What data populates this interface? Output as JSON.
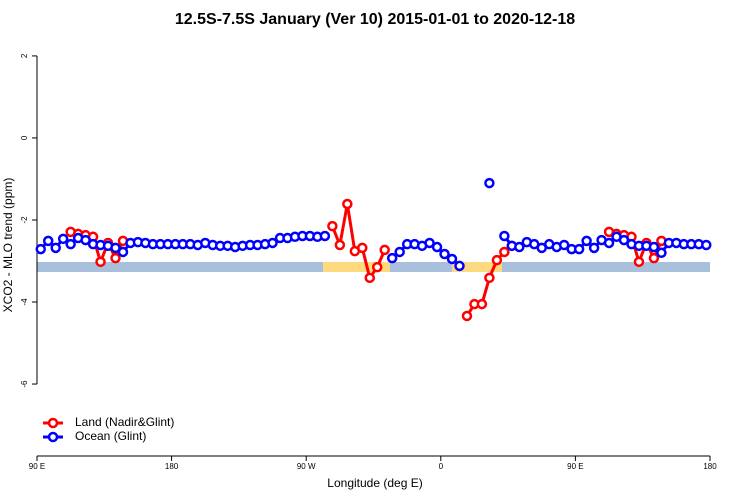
{
  "chart_data": {
    "type": "line",
    "title": "12.5S-7.5S January (Ver 10)   2015-01-01 to 2020-12-18",
    "x_label": "Longitude (deg E)",
    "y_label": "XCO2 - MLO trend (ppm)",
    "xlim": [
      90,
      540
    ],
    "xticks": [
      {
        "value": 90,
        "label": "90 E"
      },
      180,
      {
        "value": 270,
        "label": "90 W"
      },
      {
        "value": 360,
        "label": "0"
      },
      {
        "value": 450,
        "label": "90 E"
      },
      {
        "value": 540,
        "label": "180"
      }
    ],
    "ylim": [
      -7.73,
      2.51
    ],
    "yticks": [
      2,
      0,
      -2,
      -4,
      -6
    ],
    "legend": "bottom-left",
    "x": [
      92.5,
      97.5,
      102.5,
      107.5,
      112.5,
      117.5,
      122.5,
      127.5,
      132.5,
      137.5,
      142.5,
      147.5,
      152.5,
      157.5,
      162.5,
      167.5,
      172.5,
      177.5,
      182.5,
      187.5,
      192.5,
      197.5,
      202.5,
      207.5,
      212.5,
      217.5,
      222.5,
      227.5,
      232.5,
      237.5,
      242.5,
      247.5,
      252.5,
      257.5,
      262.5,
      267.5,
      272.5,
      277.5,
      282.5,
      287.5,
      292.5,
      297.5,
      302.5,
      307.5,
      312.5,
      317.5,
      322.5,
      327.5,
      332.5,
      337.5,
      342.5,
      347.5,
      352.5,
      357.5,
      362.5,
      367.5,
      372.5,
      377.5,
      382.5,
      387.5,
      392.5,
      397.5,
      402.5,
      407.5,
      412.5,
      417.5,
      422.5,
      427.5,
      432.5,
      437.5,
      442.5,
      447.5,
      452.5,
      457.5,
      462.5,
      467.5,
      472.5,
      477.5,
      482.5,
      487.5,
      492.5,
      497.5,
      502.5,
      507.5,
      512.5,
      517.5,
      522.5,
      527.5,
      532.5,
      537.5
    ],
    "series": [
      {
        "name": "Land (Nadir&Glint)",
        "color": "#ff0000",
        "values": [
          null,
          null,
          null,
          null,
          -2.29,
          -2.34,
          -2.37,
          -2.41,
          -3.02,
          -2.56,
          -2.93,
          -2.51,
          null,
          null,
          null,
          null,
          null,
          null,
          null,
          null,
          null,
          null,
          null,
          null,
          null,
          null,
          null,
          null,
          null,
          null,
          null,
          null,
          null,
          null,
          null,
          null,
          null,
          null,
          null,
          -2.15,
          -2.61,
          -1.61,
          -2.76,
          -2.68,
          -3.41,
          -3.15,
          -2.73,
          null,
          null,
          null,
          null,
          null,
          null,
          null,
          null,
          null,
          null,
          -4.34,
          -4.05,
          -4.05,
          -3.41,
          -2.98,
          -2.78,
          -2.63,
          null,
          null,
          null,
          null,
          null,
          null,
          null,
          null,
          null,
          null,
          null,
          null,
          -2.29,
          -2.34,
          -2.37,
          -2.41,
          -3.02,
          -2.56,
          -2.93,
          -2.51,
          null,
          null,
          null,
          null,
          null,
          null
        ]
      },
      {
        "name": "Ocean (Glint)",
        "color": "#0000ff",
        "values": [
          -2.71,
          -2.51,
          -2.68,
          -2.46,
          -2.59,
          -2.44,
          -2.49,
          -2.59,
          -2.61,
          -2.63,
          -2.68,
          -2.78,
          -2.56,
          -2.54,
          -2.56,
          -2.59,
          -2.59,
          -2.59,
          -2.59,
          -2.59,
          -2.59,
          -2.61,
          -2.56,
          -2.61,
          -2.63,
          -2.63,
          -2.66,
          -2.63,
          -2.61,
          -2.61,
          -2.59,
          -2.56,
          -2.44,
          -2.44,
          -2.41,
          -2.39,
          -2.39,
          -2.41,
          -2.39,
          null,
          null,
          null,
          null,
          null,
          null,
          null,
          null,
          -2.93,
          -2.78,
          -2.59,
          -2.59,
          -2.63,
          -2.56,
          -2.66,
          -2.83,
          -2.95,
          -3.12,
          null,
          null,
          null,
          -1.1,
          null,
          -2.39,
          -2.63,
          -2.66,
          -2.54,
          -2.59,
          -2.68,
          -2.59,
          -2.66,
          -2.61,
          -2.71,
          -2.71,
          -2.51,
          -2.68,
          -2.49,
          -2.56,
          -2.41,
          -2.49,
          -2.59,
          -2.63,
          -2.63,
          -2.66,
          -2.8,
          -2.56,
          -2.56,
          -2.59,
          -2.59,
          -2.59,
          -2.61
        ]
      }
    ]
  }
}
